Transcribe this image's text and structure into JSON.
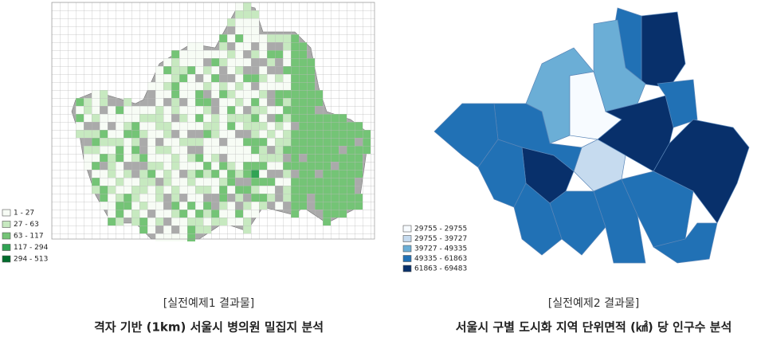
{
  "left": {
    "legend": [
      {
        "label": "1 - 27",
        "color": "#f7fcf5"
      },
      {
        "label": "27 - 63",
        "color": "#c7e9c0"
      },
      {
        "label": "63 - 117",
        "color": "#74c476"
      },
      {
        "label": "117 - 294",
        "color": "#31a354"
      },
      {
        "label": "294 - 513",
        "color": "#006d2c"
      }
    ],
    "caption": "[실전예제1 결과물]",
    "title": "격자 기반 (1km) 서울시 병의원 밀집지 분석"
  },
  "right": {
    "legend": [
      {
        "label": "29755 - 29755",
        "color": "#f7fbff"
      },
      {
        "label": "29755 - 39727",
        "color": "#c6dbef"
      },
      {
        "label": "39727 - 49335",
        "color": "#6baed6"
      },
      {
        "label": "49335 - 61863",
        "color": "#2171b5"
      },
      {
        "label": "61863 - 69483",
        "color": "#08306b"
      }
    ],
    "caption": "[실전예제2 결과물]",
    "title": "서울시 구별 도시화 지역 단위면적 (㎢) 당 인구수 분석"
  }
}
